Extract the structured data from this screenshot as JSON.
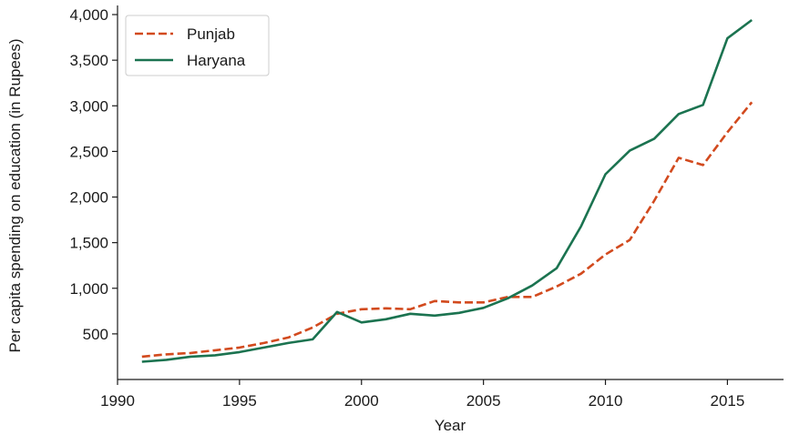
{
  "chart_data": {
    "type": "line",
    "title": "",
    "xlabel": "Year",
    "ylabel": "Per capita spending on education (in Rupees)",
    "xlim": [
      1990,
      2017.3
    ],
    "ylim": [
      0,
      4100
    ],
    "xticks": [
      1990,
      1995,
      2000,
      2005,
      2010,
      2015
    ],
    "xtick_labels": [
      "1990",
      "1995",
      "2000",
      "2005",
      "2010",
      "2015"
    ],
    "yticks": [
      500,
      1000,
      1500,
      2000,
      2500,
      3000,
      3500,
      4000
    ],
    "ytick_labels": [
      "500",
      "1,000",
      "1,500",
      "2,000",
      "2,500",
      "3,000",
      "3,500",
      "4,000"
    ],
    "grid": false,
    "legend_position": "top-left",
    "x": [
      1991,
      1992,
      1993,
      1994,
      1995,
      1996,
      1997,
      1998,
      1999,
      2000,
      2001,
      2002,
      2003,
      2004,
      2005,
      2006,
      2007,
      2008,
      2009,
      2010,
      2011,
      2012,
      2013,
      2014,
      2015,
      2016
    ],
    "series": [
      {
        "name": "Punjab",
        "color": "#d24a1e",
        "line_style": "dashed",
        "values": [
          250,
          275,
          290,
          320,
          350,
          400,
          460,
          570,
          720,
          770,
          780,
          770,
          860,
          845,
          845,
          905,
          905,
          1020,
          1160,
          1370,
          1530,
          1960,
          2430,
          2350,
          2710,
          3040
        ]
      },
      {
        "name": "Haryana",
        "color": "#1b7350",
        "line_style": "solid",
        "values": [
          195,
          215,
          250,
          265,
          300,
          350,
          400,
          440,
          740,
          625,
          660,
          720,
          700,
          730,
          785,
          890,
          1030,
          1220,
          1680,
          2250,
          2510,
          2640,
          2910,
          3010,
          3740,
          3940
        ]
      }
    ]
  }
}
